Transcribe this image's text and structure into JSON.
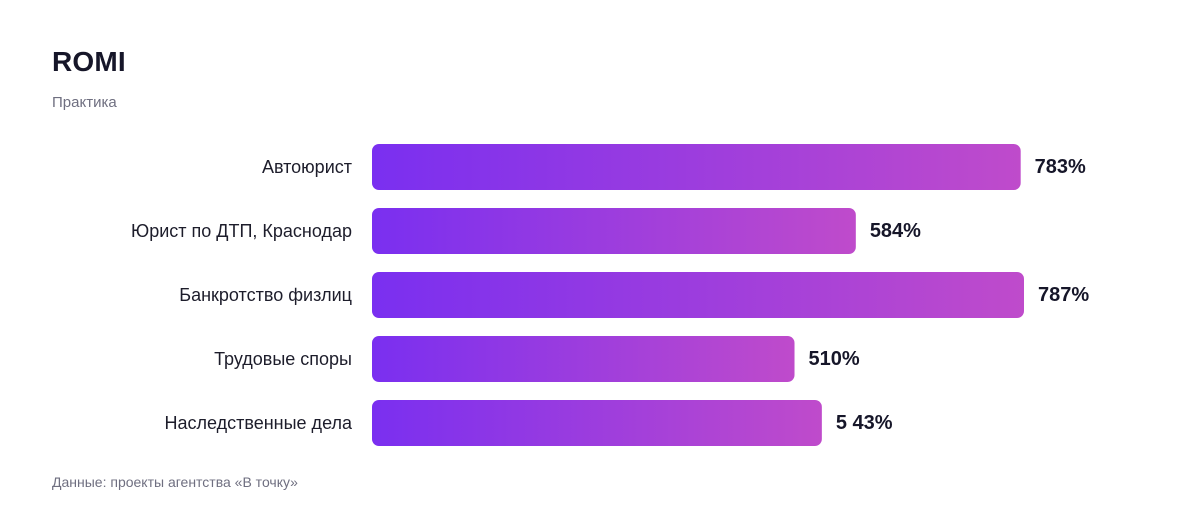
{
  "header": {
    "title": "ROMI",
    "subtitle": "Практика"
  },
  "footer": {
    "source": "Данные: проекты агентства «В точку»"
  },
  "colors": {
    "bar_gradient_start": "#7a2ff0",
    "bar_gradient_end": "#bf4bcb",
    "text_dark": "#161629",
    "text_muted": "#6f6f80"
  },
  "chart_data": {
    "type": "bar",
    "orientation": "horizontal",
    "title": "ROMI",
    "subtitle": "Практика",
    "categories": [
      "Автоюрист",
      "Юрист по ДТП, Краснодар",
      "Банкротство физлиц",
      "Трудовые споры",
      "Наследственные дела"
    ],
    "values": [
      783,
      584,
      787,
      510,
      543
    ],
    "value_labels": [
      "783%",
      "584%",
      "787%",
      "510%",
      "5 43%"
    ],
    "unit": "%",
    "xlim": [
      0,
      787
    ],
    "grid": false,
    "legend": "none"
  }
}
